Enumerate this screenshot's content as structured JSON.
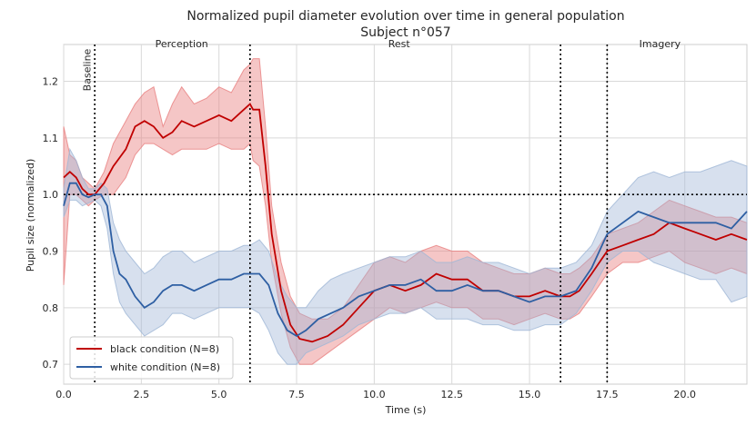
{
  "chart_data": {
    "type": "line",
    "title": "Normalized pupil diameter evolution over time in general population",
    "subtitle": "Subject n°057",
    "xlabel": "Time (s)",
    "ylabel": "Pupil size (normalized)",
    "xlim": [
      0,
      22
    ],
    "ylim": [
      0.665,
      1.265
    ],
    "xticks": [
      0.0,
      2.5,
      5.0,
      7.5,
      10.0,
      12.5,
      15.0,
      17.5,
      20.0
    ],
    "xtick_labels": [
      "0.0",
      "2.5",
      "5.0",
      "7.5",
      "10.0",
      "12.5",
      "15.0",
      "17.5",
      "20.0"
    ],
    "yticks": [
      0.7,
      0.8,
      0.9,
      1.0,
      1.1,
      1.2
    ],
    "ytick_labels": [
      "0.7",
      "0.8",
      "0.9",
      "1.0",
      "1.1",
      "1.2"
    ],
    "grid": true,
    "legend_position": "lower-left",
    "reference_line_y": 1.0,
    "phase_lines": [
      1.0,
      6.0,
      16.0,
      17.5
    ],
    "phase_labels": [
      {
        "text": "Baseline",
        "x": 0.75,
        "rotated": true
      },
      {
        "text": "Perception",
        "x": 3.8,
        "rotated": false
      },
      {
        "text": "Rest",
        "x": 10.8,
        "rotated": false
      },
      {
        "text": "Imagery",
        "x": 19.2,
        "rotated": false
      }
    ],
    "series": [
      {
        "name": "black condition (N=8)",
        "color": "#c00000",
        "band_color": "#e88080",
        "x": [
          0,
          0.2,
          0.4,
          0.6,
          0.8,
          1.0,
          1.3,
          1.6,
          2.0,
          2.3,
          2.6,
          2.9,
          3.2,
          3.5,
          3.8,
          4.2,
          4.6,
          5.0,
          5.4,
          5.8,
          6.0,
          6.1,
          6.3,
          6.5,
          6.7,
          7.0,
          7.3,
          7.6,
          8.0,
          8.5,
          9.0,
          9.5,
          10.0,
          10.5,
          11.0,
          11.5,
          12.0,
          12.5,
          13.0,
          13.5,
          14.0,
          14.5,
          15.0,
          15.5,
          16.0,
          16.3,
          16.6,
          17.0,
          17.5,
          18.0,
          18.5,
          19.0,
          19.5,
          20.0,
          20.5,
          21.0,
          21.5,
          22.0
        ],
        "y": [
          1.03,
          1.04,
          1.03,
          1.01,
          1.0,
          1.0,
          1.02,
          1.05,
          1.08,
          1.12,
          1.13,
          1.12,
          1.1,
          1.11,
          1.13,
          1.12,
          1.13,
          1.14,
          1.13,
          1.15,
          1.16,
          1.15,
          1.15,
          1.05,
          0.93,
          0.83,
          0.77,
          0.745,
          0.74,
          0.75,
          0.77,
          0.8,
          0.83,
          0.84,
          0.83,
          0.84,
          0.86,
          0.85,
          0.85,
          0.83,
          0.83,
          0.82,
          0.82,
          0.83,
          0.82,
          0.82,
          0.83,
          0.86,
          0.9,
          0.91,
          0.92,
          0.93,
          0.95,
          0.94,
          0.93,
          0.92,
          0.93,
          0.92
        ],
        "lower": [
          0.84,
          1.0,
          1.0,
          0.99,
          0.98,
          0.99,
          1.0,
          1.0,
          1.03,
          1.07,
          1.09,
          1.09,
          1.08,
          1.07,
          1.08,
          1.08,
          1.08,
          1.09,
          1.08,
          1.08,
          1.09,
          1.06,
          1.05,
          0.98,
          0.88,
          0.79,
          0.73,
          0.7,
          0.7,
          0.72,
          0.74,
          0.76,
          0.78,
          0.8,
          0.79,
          0.8,
          0.81,
          0.8,
          0.8,
          0.78,
          0.78,
          0.77,
          0.78,
          0.79,
          0.78,
          0.78,
          0.79,
          0.82,
          0.86,
          0.88,
          0.88,
          0.89,
          0.9,
          0.88,
          0.87,
          0.86,
          0.87,
          0.86
        ],
        "upper": [
          1.12,
          1.07,
          1.06,
          1.03,
          1.02,
          1.01,
          1.04,
          1.09,
          1.13,
          1.16,
          1.18,
          1.19,
          1.12,
          1.16,
          1.19,
          1.16,
          1.17,
          1.19,
          1.18,
          1.22,
          1.23,
          1.24,
          1.24,
          1.12,
          0.98,
          0.88,
          0.82,
          0.79,
          0.78,
          0.78,
          0.8,
          0.84,
          0.88,
          0.89,
          0.88,
          0.9,
          0.91,
          0.9,
          0.9,
          0.88,
          0.87,
          0.86,
          0.86,
          0.87,
          0.86,
          0.86,
          0.87,
          0.89,
          0.93,
          0.94,
          0.95,
          0.97,
          0.99,
          0.98,
          0.97,
          0.96,
          0.96,
          0.95
        ]
      },
      {
        "name": "white condition (N=8)",
        "color": "#2e5fa3",
        "band_color": "#9fb6d6",
        "x": [
          0,
          0.2,
          0.4,
          0.6,
          0.8,
          1.0,
          1.2,
          1.4,
          1.6,
          1.8,
          2.0,
          2.3,
          2.6,
          2.9,
          3.2,
          3.5,
          3.8,
          4.2,
          4.6,
          5.0,
          5.4,
          5.8,
          6.0,
          6.3,
          6.6,
          6.9,
          7.2,
          7.5,
          7.8,
          8.2,
          8.6,
          9.0,
          9.5,
          10.0,
          10.5,
          11.0,
          11.5,
          12.0,
          12.5,
          13.0,
          13.5,
          14.0,
          14.5,
          15.0,
          15.5,
          16.0,
          16.5,
          17.0,
          17.5,
          18.0,
          18.5,
          19.0,
          19.5,
          20.0,
          20.5,
          21.0,
          21.5,
          22.0
        ],
        "y": [
          0.98,
          1.02,
          1.02,
          1.0,
          0.995,
          1.0,
          1.0,
          0.98,
          0.9,
          0.86,
          0.85,
          0.82,
          0.8,
          0.81,
          0.83,
          0.84,
          0.84,
          0.83,
          0.84,
          0.85,
          0.85,
          0.86,
          0.86,
          0.86,
          0.84,
          0.79,
          0.76,
          0.75,
          0.76,
          0.78,
          0.79,
          0.8,
          0.82,
          0.83,
          0.84,
          0.84,
          0.85,
          0.83,
          0.83,
          0.84,
          0.83,
          0.83,
          0.82,
          0.81,
          0.82,
          0.82,
          0.83,
          0.87,
          0.93,
          0.95,
          0.97,
          0.96,
          0.95,
          0.95,
          0.95,
          0.95,
          0.94,
          0.97
        ],
        "lower": [
          0.96,
          0.99,
          0.99,
          0.98,
          0.985,
          0.99,
          0.98,
          0.94,
          0.86,
          0.81,
          0.79,
          0.77,
          0.75,
          0.76,
          0.77,
          0.79,
          0.79,
          0.78,
          0.79,
          0.8,
          0.8,
          0.8,
          0.8,
          0.79,
          0.76,
          0.72,
          0.7,
          0.7,
          0.72,
          0.73,
          0.74,
          0.75,
          0.77,
          0.78,
          0.79,
          0.79,
          0.8,
          0.78,
          0.78,
          0.78,
          0.77,
          0.77,
          0.76,
          0.76,
          0.77,
          0.77,
          0.79,
          0.83,
          0.88,
          0.9,
          0.9,
          0.88,
          0.87,
          0.86,
          0.85,
          0.85,
          0.81,
          0.82
        ],
        "upper": [
          1.01,
          1.08,
          1.06,
          1.03,
          1.01,
          1.01,
          1.02,
          1.01,
          0.95,
          0.92,
          0.9,
          0.88,
          0.86,
          0.87,
          0.89,
          0.9,
          0.9,
          0.88,
          0.89,
          0.9,
          0.9,
          0.91,
          0.91,
          0.92,
          0.9,
          0.85,
          0.82,
          0.8,
          0.8,
          0.83,
          0.85,
          0.86,
          0.87,
          0.88,
          0.89,
          0.89,
          0.9,
          0.88,
          0.88,
          0.89,
          0.88,
          0.88,
          0.87,
          0.86,
          0.87,
          0.87,
          0.88,
          0.91,
          0.97,
          1.0,
          1.03,
          1.04,
          1.03,
          1.04,
          1.04,
          1.05,
          1.06,
          1.05
        ]
      }
    ]
  }
}
